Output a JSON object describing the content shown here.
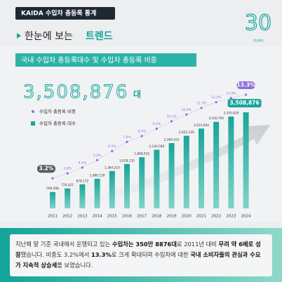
{
  "header": {
    "tag": "KAIDA 수입차 총등록 통계",
    "logo_number": "30",
    "logo_text": "YEARS",
    "headline": "한눈에 보는",
    "headline_accent": "트렌드"
  },
  "chart_data": {
    "type": "bar_line",
    "title": "국내 수입차 총등록대수 및 수입차 총등록 비중",
    "big_number": "3,508,876",
    "big_unit": "대",
    "categories": [
      "2011",
      "2012",
      "2013",
      "2014",
      "2015",
      "2016",
      "2017",
      "2018",
      "2019",
      "2020",
      "2021",
      "2022",
      "2023",
      "2024"
    ],
    "series": [
      {
        "name": "수입차 총등록 대수",
        "color": "#1aa59a",
        "kind": "bar",
        "values": [
          596588,
          724421,
          878172,
          1080139,
          1364210,
          1618135,
          1868932,
          2140589,
          2384933,
          2652100,
          2915664,
          3160760,
          3355829,
          3508876
        ],
        "value_labels": [
          "596,588",
          "724,421",
          "878,172",
          "1,080,139",
          "1,364,210",
          "1,618,135",
          "1,868,932",
          "2,140,589",
          "2,384,933",
          "2,652,100",
          "2,915,664",
          "3,160,760",
          "3,355,829",
          "3,508,876"
        ]
      },
      {
        "name": "수입차 총등록 비중",
        "color": "#8b6fd6",
        "kind": "line",
        "values": [
          3.2,
          3.8,
          4.5,
          5.4,
          6.5,
          7.6,
          8.3,
          9.2,
          10.1,
          10.9,
          11.7,
          12.4,
          12.9,
          13.3
        ],
        "value_labels": [
          "3.2%",
          "3.8%",
          "4.5%",
          "5.4%",
          "6.5%",
          "7.6%",
          "8.3%",
          "9.2%",
          "10.1%",
          "10.9%",
          "11.7%",
          "12.4%",
          "12.9%",
          "13.3%"
        ]
      }
    ]
  },
  "paragraph": [
    {
      "text": "지난해 말 기준 국내에서 운행되고 있는 ",
      "bold": false
    },
    {
      "text": "수입차는 350만 8876대",
      "bold": true
    },
    {
      "text": "로 2011년 대비 ",
      "bold": false
    },
    {
      "text": "무려 약 6배로 성장",
      "bold": true
    },
    {
      "text": "했습니다. 비중도 3.2%에서 ",
      "bold": false
    },
    {
      "text": "13.3%",
      "bold": true
    },
    {
      "text": "로 크게 확대되며 수입차에 대한 ",
      "bold": false
    },
    {
      "text": "국내 소비자들의 관심과 수요가 지속적 상승세",
      "bold": true
    },
    {
      "text": "를 보였습니다.",
      "bold": false
    }
  ]
}
